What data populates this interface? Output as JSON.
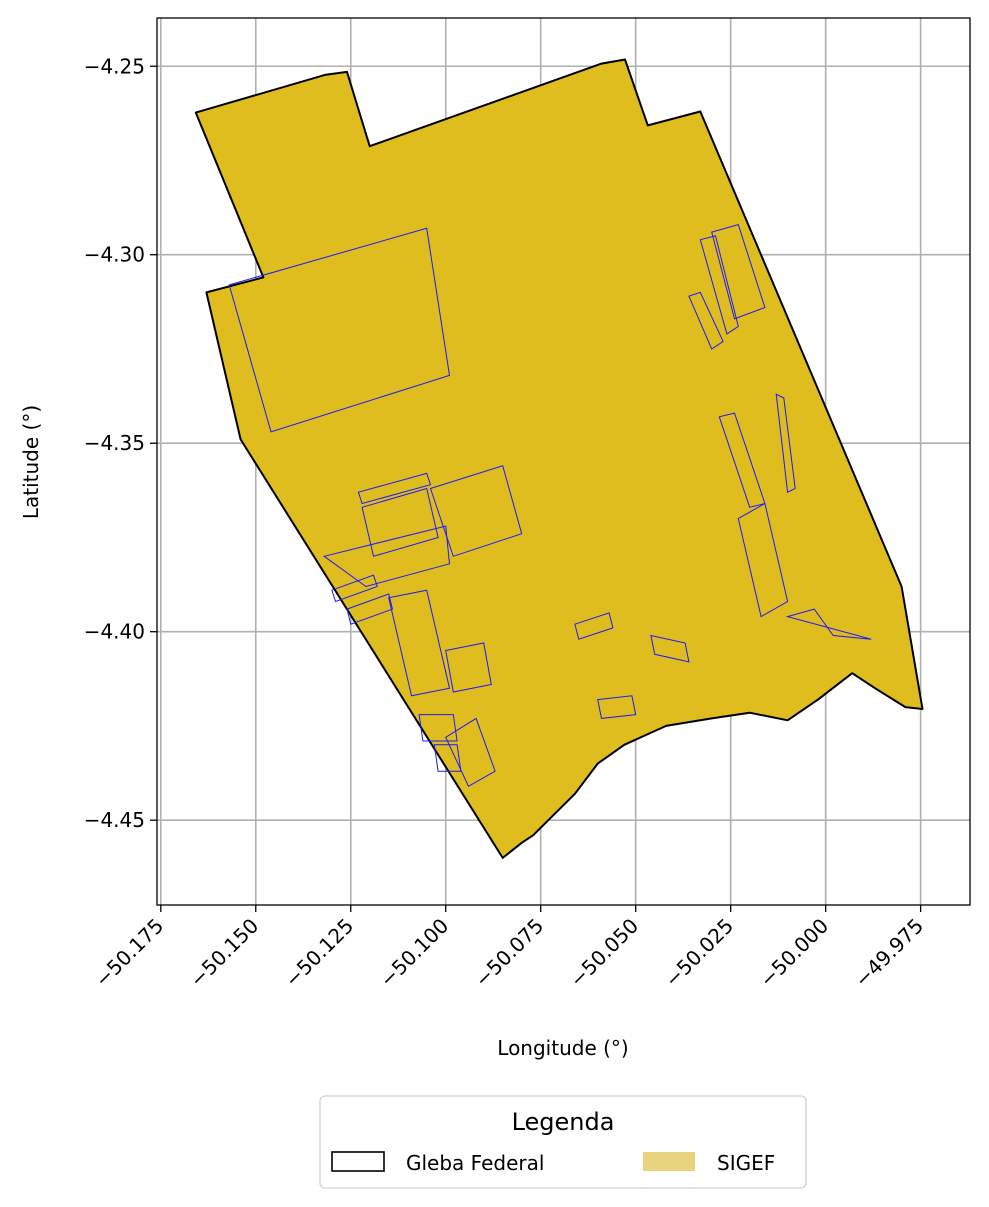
{
  "colors": {
    "area_fill": "#dfbd1f",
    "boundary": "#000000",
    "parcels": "#1a1aff",
    "grid": "#b0b0b0",
    "legend_sigef": "#e8d47c"
  },
  "chart_data": {
    "type": "map",
    "xlabel": "Longitude (°)",
    "ylabel": "Latitude (°)",
    "xlim": [
      -50.176,
      -49.962
    ],
    "ylim": [
      -4.4725,
      -4.2372
    ],
    "grid": true,
    "x_ticks": [
      -50.175,
      -50.15,
      -50.125,
      -50.1,
      -50.075,
      -50.05,
      -50.025,
      -50.0,
      -49.975
    ],
    "x_tick_labels": [
      "−50.175",
      "−50.150",
      "−50.125",
      "−50.100",
      "−50.075",
      "−50.050",
      "−50.025",
      "−50.000",
      "−49.975"
    ],
    "y_ticks": [
      -4.25,
      -4.3,
      -4.35,
      -4.4,
      -4.45
    ],
    "y_tick_labels": [
      "−4.25",
      "−4.30",
      "−4.35",
      "−4.40",
      "−4.45"
    ],
    "legend": {
      "title": "Legenda",
      "placement": "bottom-center",
      "entries": [
        "Gleba Federal",
        "SIGEF"
      ]
    },
    "gleba_outline": [
      [
        -50.1658,
        -4.2623
      ],
      [
        -50.1318,
        -4.2523
      ],
      [
        -50.126,
        -4.2515
      ],
      [
        -50.12,
        -4.2712
      ],
      [
        -50.059,
        -4.2493
      ],
      [
        -50.0528,
        -4.2482
      ],
      [
        -50.0468,
        -4.2657
      ],
      [
        -50.033,
        -4.262
      ],
      [
        -49.98,
        -4.388
      ],
      [
        -49.9745,
        -4.4205
      ],
      [
        -49.979,
        -4.42
      ],
      [
        -49.987,
        -4.415
      ],
      [
        -49.993,
        -4.411
      ],
      [
        -50.002,
        -4.418
      ],
      [
        -50.01,
        -4.4235
      ],
      [
        -50.02,
        -4.4215
      ],
      [
        -50.03,
        -4.423
      ],
      [
        -50.042,
        -4.425
      ],
      [
        -50.053,
        -4.43
      ],
      [
        -50.06,
        -4.435
      ],
      [
        -50.066,
        -4.443
      ],
      [
        -50.073,
        -4.45
      ],
      [
        -50.077,
        -4.454
      ],
      [
        -50.08,
        -4.456
      ],
      [
        -50.085,
        -4.46
      ],
      [
        -50.154,
        -4.349
      ],
      [
        -50.163,
        -4.31
      ],
      [
        -50.148,
        -4.306
      ]
    ],
    "sigef_parcels": [
      [
        [
          -50.157,
          -4.308
        ],
        [
          -50.105,
          -4.293
        ],
        [
          -50.099,
          -4.332
        ],
        [
          -50.146,
          -4.347
        ]
      ],
      [
        [
          -50.123,
          -4.363
        ],
        [
          -50.105,
          -4.358
        ],
        [
          -50.104,
          -4.361
        ],
        [
          -50.122,
          -4.366
        ]
      ],
      [
        [
          -50.122,
          -4.367
        ],
        [
          -50.105,
          -4.362
        ],
        [
          -50.102,
          -4.375
        ],
        [
          -50.119,
          -4.38
        ]
      ],
      [
        [
          -50.104,
          -4.362
        ],
        [
          -50.085,
          -4.356
        ],
        [
          -50.08,
          -4.374
        ],
        [
          -50.098,
          -4.38
        ]
      ],
      [
        [
          -50.132,
          -4.38
        ],
        [
          -50.1,
          -4.372
        ],
        [
          -50.099,
          -4.382
        ],
        [
          -50.121,
          -4.388
        ]
      ],
      [
        [
          -50.13,
          -4.389
        ],
        [
          -50.119,
          -4.385
        ],
        [
          -50.118,
          -4.388
        ],
        [
          -50.129,
          -4.392
        ]
      ],
      [
        [
          -50.126,
          -4.394
        ],
        [
          -50.115,
          -4.39
        ],
        [
          -50.114,
          -4.394
        ],
        [
          -50.125,
          -4.398
        ]
      ],
      [
        [
          -50.115,
          -4.391
        ],
        [
          -50.105,
          -4.389
        ],
        [
          -50.099,
          -4.415
        ],
        [
          -50.109,
          -4.417
        ]
      ],
      [
        [
          -50.1,
          -4.405
        ],
        [
          -50.09,
          -4.403
        ],
        [
          -50.088,
          -4.414
        ],
        [
          -50.098,
          -4.416
        ]
      ],
      [
        [
          -50.107,
          -4.422
        ],
        [
          -50.098,
          -4.422
        ],
        [
          -50.097,
          -4.429
        ],
        [
          -50.106,
          -4.429
        ]
      ],
      [
        [
          -50.092,
          -4.423
        ],
        [
          -50.087,
          -4.437
        ],
        [
          -50.094,
          -4.441
        ],
        [
          -50.1,
          -4.428
        ]
      ],
      [
        [
          -50.103,
          -4.43
        ],
        [
          -50.097,
          -4.43
        ],
        [
          -50.096,
          -4.437
        ],
        [
          -50.102,
          -4.437
        ]
      ],
      [
        [
          -50.066,
          -4.398
        ],
        [
          -50.057,
          -4.395
        ],
        [
          -50.056,
          -4.399
        ],
        [
          -50.065,
          -4.402
        ]
      ],
      [
        [
          -50.046,
          -4.401
        ],
        [
          -50.037,
          -4.403
        ],
        [
          -50.036,
          -4.408
        ],
        [
          -50.045,
          -4.406
        ]
      ],
      [
        [
          -50.06,
          -4.418
        ],
        [
          -50.051,
          -4.417
        ],
        [
          -50.05,
          -4.422
        ],
        [
          -50.059,
          -4.423
        ]
      ],
      [
        [
          -50.036,
          -4.311
        ],
        [
          -50.033,
          -4.31
        ],
        [
          -50.027,
          -4.323
        ],
        [
          -50.03,
          -4.325
        ]
      ],
      [
        [
          -50.033,
          -4.296
        ],
        [
          -50.029,
          -4.295
        ],
        [
          -50.023,
          -4.319
        ],
        [
          -50.026,
          -4.321
        ]
      ],
      [
        [
          -50.03,
          -4.294
        ],
        [
          -50.023,
          -4.292
        ],
        [
          -50.016,
          -4.314
        ],
        [
          -50.024,
          -4.317
        ]
      ],
      [
        [
          -50.028,
          -4.343
        ],
        [
          -50.024,
          -4.342
        ],
        [
          -50.016,
          -4.366
        ],
        [
          -50.02,
          -4.367
        ]
      ],
      [
        [
          -50.013,
          -4.337
        ],
        [
          -50.011,
          -4.338
        ],
        [
          -50.008,
          -4.362
        ],
        [
          -50.01,
          -4.363
        ]
      ],
      [
        [
          -50.023,
          -4.37
        ],
        [
          -50.016,
          -4.366
        ],
        [
          -50.01,
          -4.392
        ],
        [
          -50.017,
          -4.396
        ]
      ],
      [
        [
          -50.01,
          -4.396
        ],
        [
          -50.003,
          -4.394
        ],
        [
          -49.998,
          -4.401
        ],
        [
          -49.988,
          -4.402
        ]
      ]
    ]
  }
}
